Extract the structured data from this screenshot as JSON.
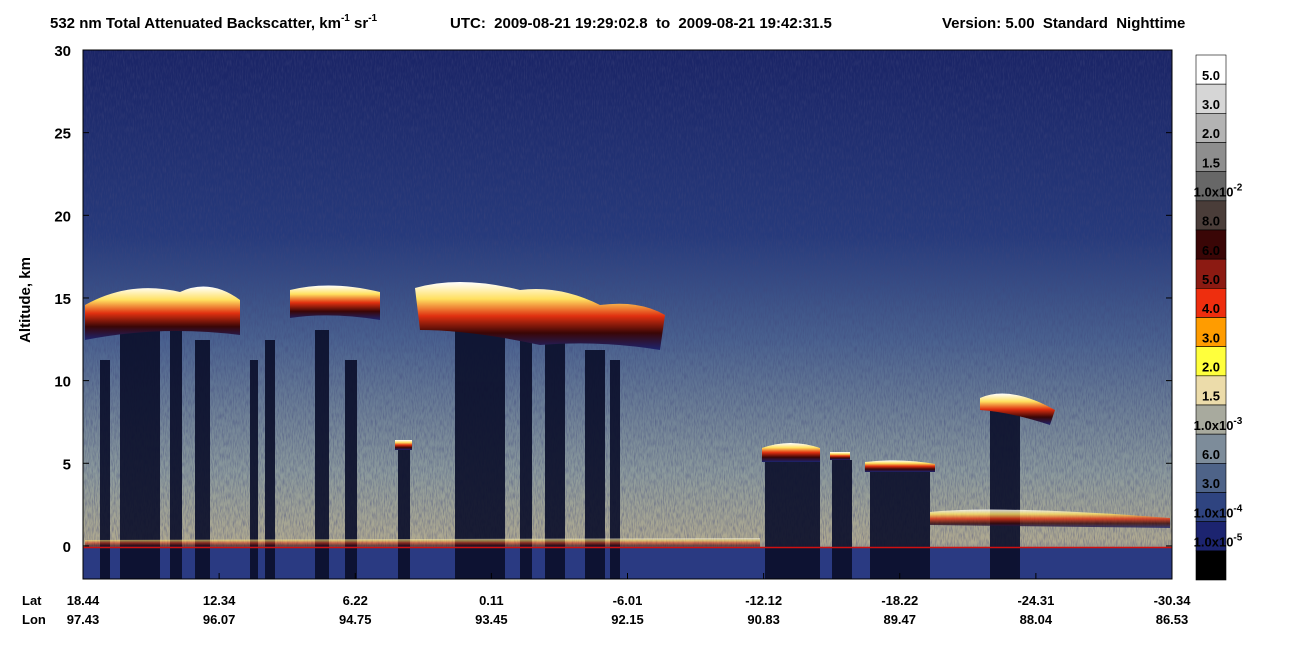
{
  "chart_data": {
    "type": "curtain",
    "title": {
      "name": "532 nm Total Attenuated Backscatter, km",
      "unit_exp1": "-1",
      "unit_sr": " sr",
      "unit_exp2": "-1",
      "utc": "UTC:  2009-08-21 19:29:02.8  to  2009-08-21 19:42:31.5",
      "version": "Version: 5.00  Standard  Nighttime"
    },
    "y_label": "Altitude, km",
    "ylim": [
      -2,
      30
    ],
    "yticks": [
      0,
      5,
      10,
      15,
      20,
      25,
      30
    ],
    "x_rows": [
      {
        "name": "Lat",
        "ticks": [
          18.44,
          12.34,
          6.22,
          0.11,
          -6.01,
          -12.12,
          -18.22,
          -24.31,
          -30.34
        ]
      },
      {
        "name": "Lon",
        "ticks": [
          97.43,
          96.07,
          94.75,
          93.45,
          92.15,
          90.83,
          89.47,
          88.04,
          86.53
        ]
      }
    ],
    "colorbar": {
      "colors": [
        "#ffffff",
        "#d6d6d6",
        "#b3b3b3",
        "#8e8e8e",
        "#676767",
        "#4a3d39",
        "#3a0606",
        "#8c1a12",
        "#ee2e0e",
        "#ff9c00",
        "#ffff3c",
        "#ecdcaa",
        "#a8aa9e",
        "#7d8c9a",
        "#4e6388",
        "#2f4480",
        "#1c2470",
        "#000000"
      ],
      "labels": [
        {
          "text": "5.0"
        },
        {
          "text": "3.0"
        },
        {
          "text": "2.0"
        },
        {
          "text": "1.5"
        },
        {
          "text": "1.0x10",
          "sup": "-2"
        },
        {
          "text": "8.0"
        },
        {
          "text": "6.0"
        },
        {
          "text": "5.0"
        },
        {
          "text": "4.0"
        },
        {
          "text": "3.0"
        },
        {
          "text": "2.0"
        },
        {
          "text": "1.5"
        },
        {
          "text": "1.0x10",
          "sup": "-3"
        },
        {
          "text": "6.0"
        },
        {
          "text": "3.0"
        },
        {
          "text": "1.0x10",
          "sup": "-4"
        },
        {
          "text": "1.0x10",
          "sup": "-5"
        }
      ]
    }
  }
}
